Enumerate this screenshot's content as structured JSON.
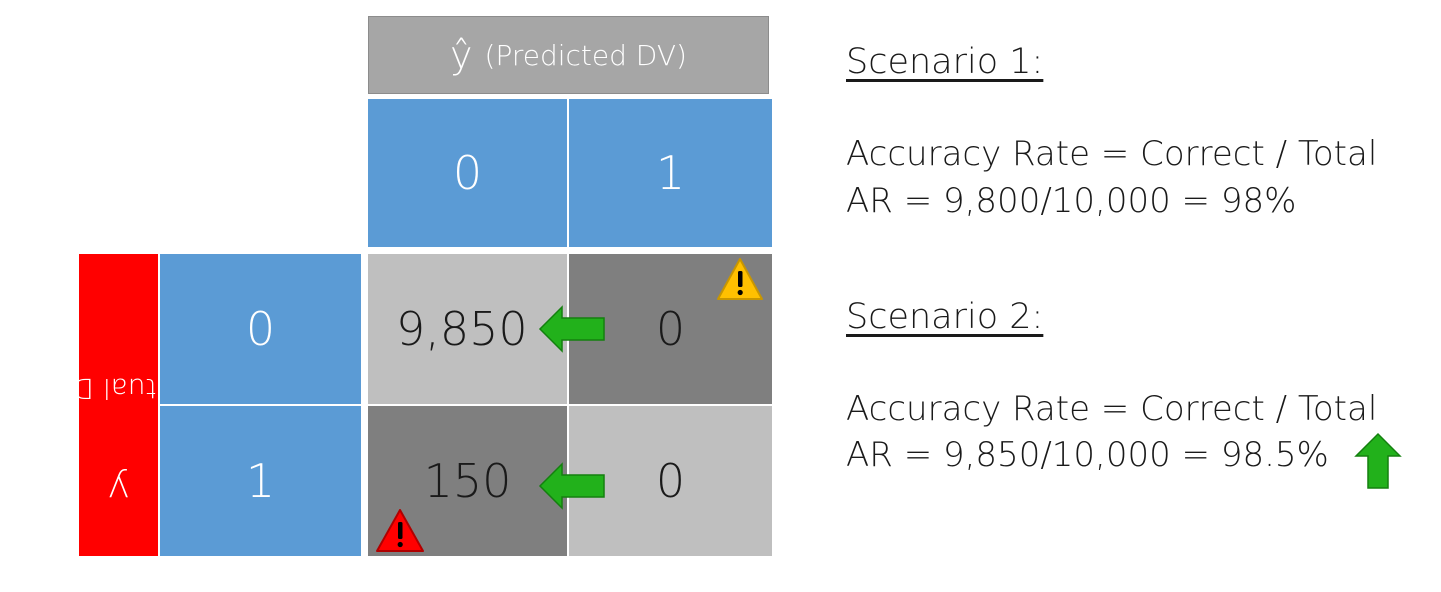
{
  "matrix": {
    "predicted_label": "(Predicted DV)",
    "predicted_symbol": "ŷ",
    "actual_label": "(Actual DV)",
    "actual_symbol": "y",
    "col_classes": [
      "0",
      "1"
    ],
    "row_classes": [
      "0",
      "1"
    ],
    "cells": [
      [
        "9,850",
        "0"
      ],
      [
        "150",
        "0"
      ]
    ]
  },
  "scenario1": {
    "heading": "Scenario 1:",
    "formula": "Accuracy Rate = Correct / Total",
    "result": "AR = 9,800/10,000 = 98%"
  },
  "scenario2": {
    "heading": "Scenario 2:",
    "formula": "Accuracy Rate = Correct / Total",
    "result": "AR = 9,850/10,000 = 98.5%"
  },
  "icons": {
    "arrow_left": "green-arrow-left-icon",
    "arrow_up": "green-arrow-up-icon",
    "warning_yellow": "yellow-warning-icon",
    "warning_red": "red-warning-icon"
  },
  "colors": {
    "header_gray": "#a6a6a6",
    "class_blue": "#5b9bd5",
    "actual_red": "#ff0000",
    "cell_light": "#bfbfbf",
    "cell_dark": "#7f7f7f",
    "arrow_green": "#22b11b",
    "warning_yellow": "#ffc000",
    "warning_red": "#ff0000"
  }
}
